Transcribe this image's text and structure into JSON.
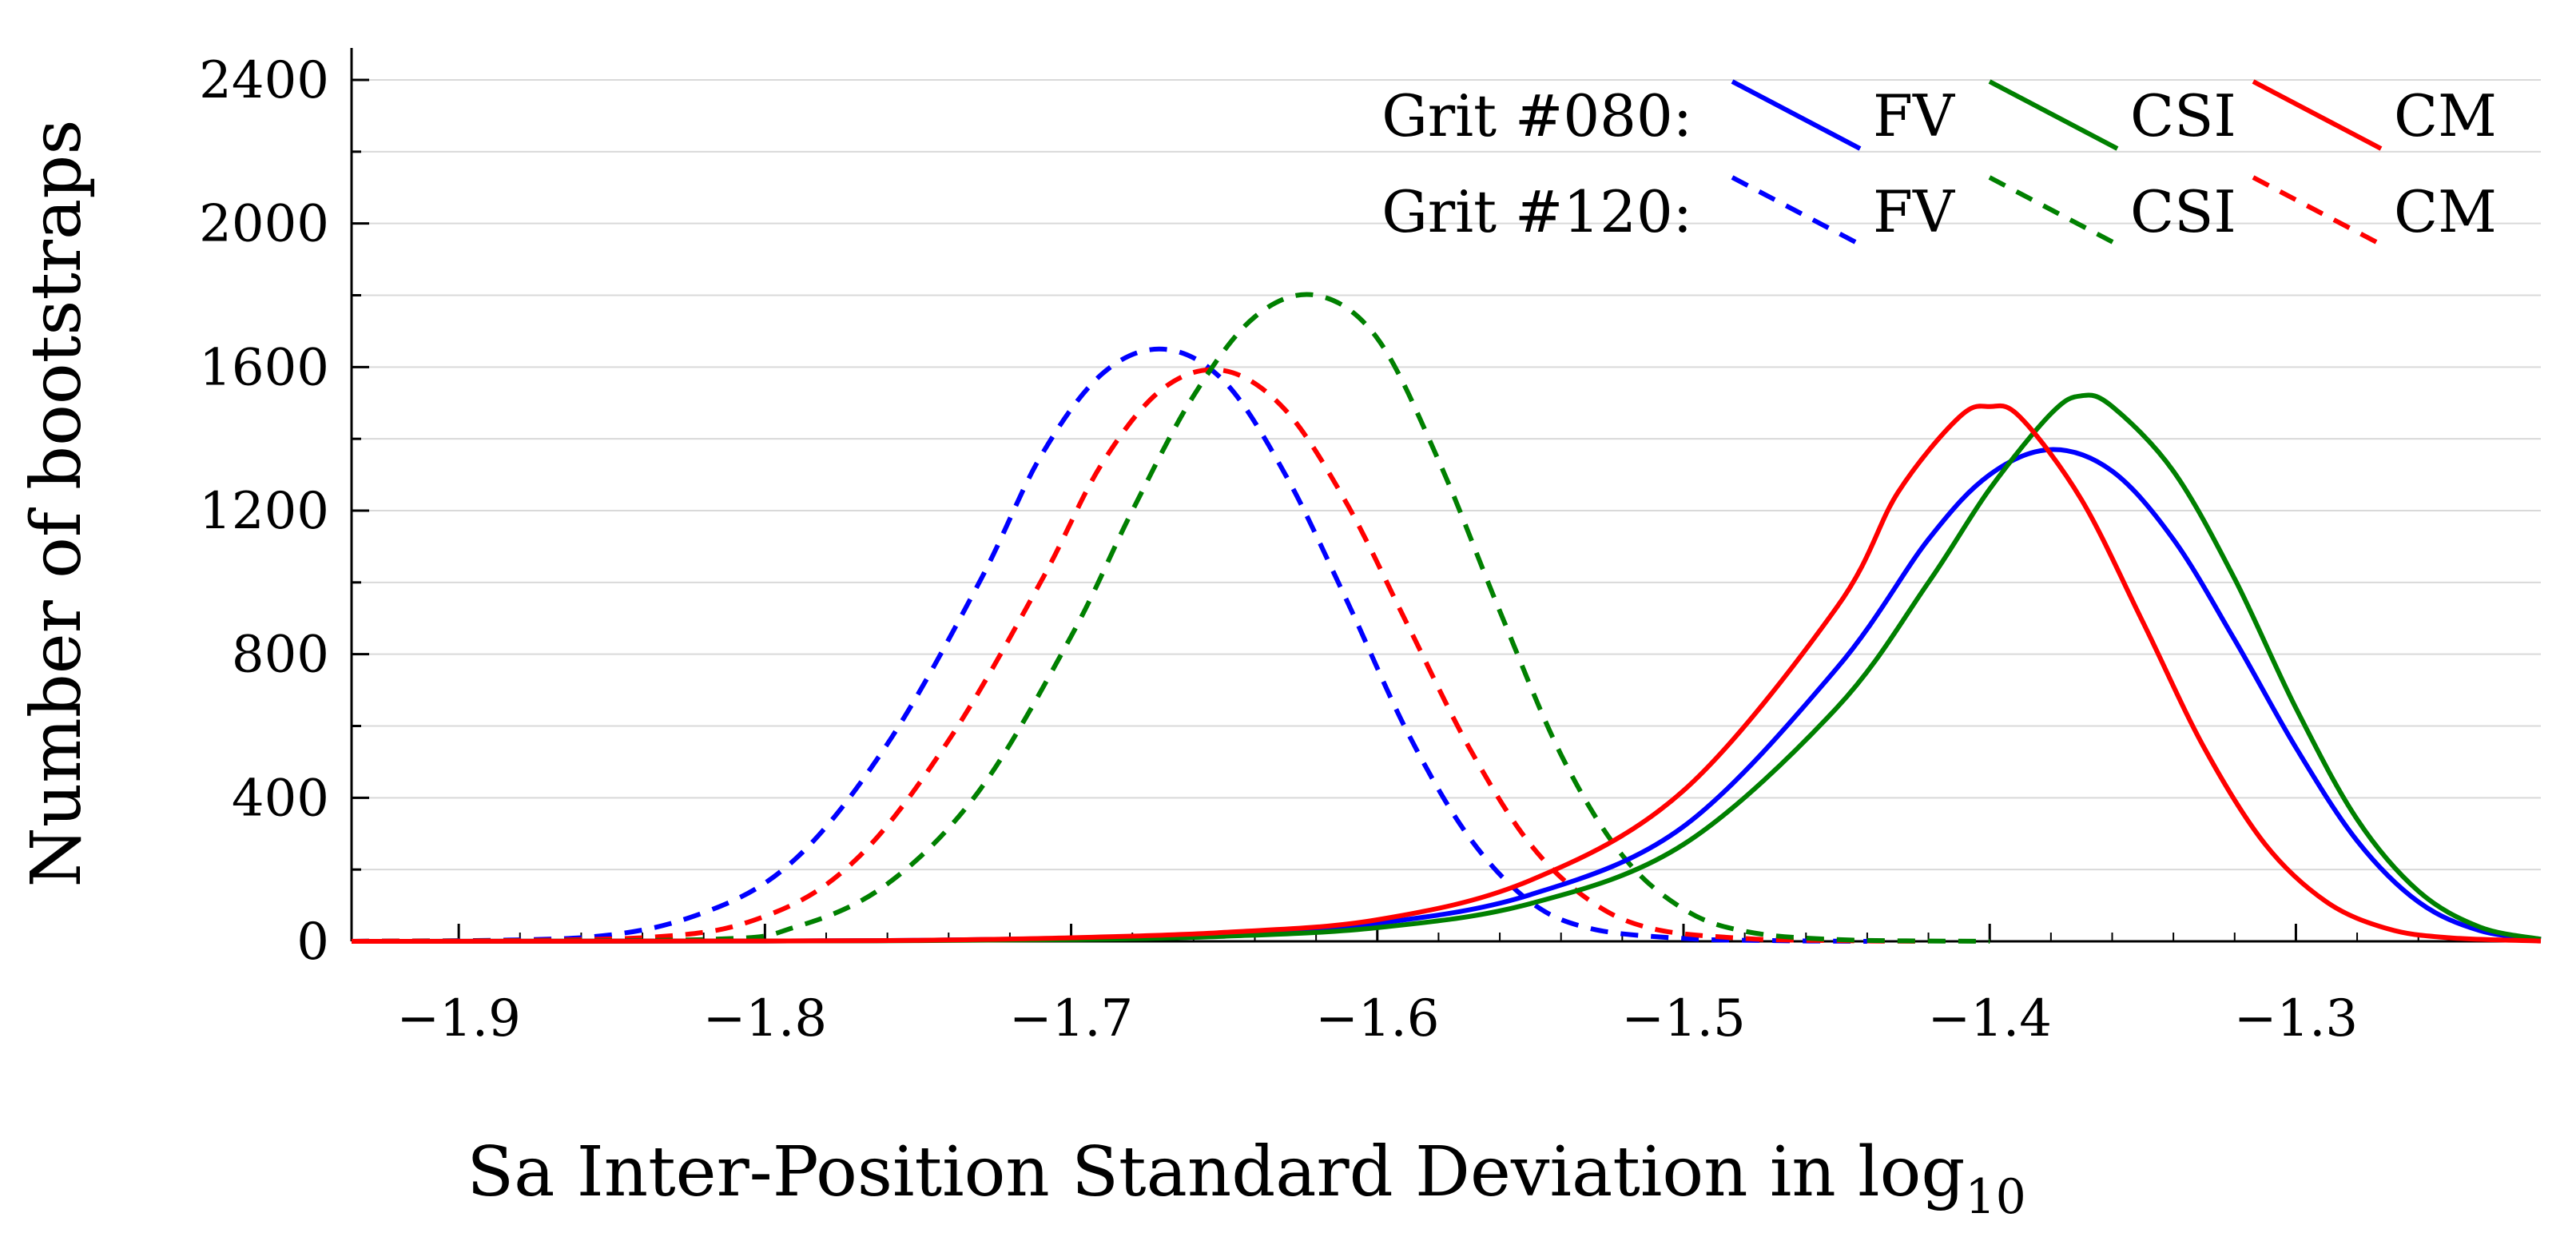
{
  "chart_data": {
    "type": "line",
    "title": "",
    "xlabel": "Sa Inter-Position Standard Deviation in log",
    "xlabel_subscript": "10",
    "ylabel": "Number of bootstraps",
    "xlim": [
      -1.935,
      -1.22
    ],
    "ylim": [
      0,
      2400
    ],
    "x_ticks": [
      -1.9,
      -1.8,
      -1.7,
      -1.6,
      -1.5,
      -1.4,
      -1.3
    ],
    "x_tick_labels": [
      "−1.9",
      "−1.8",
      "−1.7",
      "−1.6",
      "−1.5",
      "−1.4",
      "−1.3"
    ],
    "y_ticks": [
      0,
      400,
      800,
      1200,
      1600,
      2000,
      2400
    ],
    "y_tick_labels": [
      "0",
      "400",
      "800",
      "1200",
      "1600",
      "2000",
      "2400"
    ],
    "y_minor_ticks": [
      200,
      600,
      1000,
      1400,
      1800,
      2200
    ],
    "grid": true,
    "legend": {
      "position": "top-right",
      "rows": [
        {
          "label": "Grit #080:",
          "style": "solid",
          "entries": [
            "FV",
            "CSI",
            "CM"
          ]
        },
        {
          "label": "Grit #120:",
          "style": "dashed",
          "entries": [
            "FV",
            "CSI",
            "CM"
          ]
        }
      ]
    },
    "series": [
      {
        "name": "Grit #080 FV",
        "group": "Grit #080",
        "method": "FV",
        "color": "#0000ff",
        "dash": "solid",
        "x": [
          -1.935,
          -1.8,
          -1.75,
          -1.7,
          -1.65,
          -1.6,
          -1.55,
          -1.5,
          -1.45,
          -1.42,
          -1.4,
          -1.38,
          -1.36,
          -1.34,
          -1.32,
          -1.3,
          -1.28,
          -1.26,
          -1.24,
          -1.22
        ],
        "y": [
          0,
          1,
          3,
          8,
          20,
          50,
          130,
          320,
          760,
          1120,
          1300,
          1370,
          1310,
          1120,
          840,
          540,
          280,
          110,
          30,
          6
        ]
      },
      {
        "name": "Grit #080 CSI",
        "group": "Grit #080",
        "method": "CSI",
        "color": "#008000",
        "dash": "solid",
        "x": [
          -1.935,
          -1.8,
          -1.75,
          -1.7,
          -1.65,
          -1.6,
          -1.55,
          -1.5,
          -1.45,
          -1.42,
          -1.4,
          -1.38,
          -1.37,
          -1.36,
          -1.34,
          -1.32,
          -1.3,
          -1.28,
          -1.26,
          -1.24,
          -1.22
        ],
        "y": [
          0,
          1,
          2,
          5,
          14,
          38,
          105,
          270,
          650,
          1000,
          1260,
          1470,
          1520,
          1490,
          1310,
          1010,
          650,
          340,
          140,
          40,
          6
        ]
      },
      {
        "name": "Grit #080 CM",
        "group": "Grit #080",
        "method": "CM",
        "color": "#ff0000",
        "dash": "solid",
        "x": [
          -1.935,
          -1.8,
          -1.75,
          -1.7,
          -1.65,
          -1.6,
          -1.55,
          -1.5,
          -1.45,
          -1.43,
          -1.41,
          -1.4,
          -1.39,
          -1.37,
          -1.35,
          -1.33,
          -1.31,
          -1.29,
          -1.27,
          -1.25,
          -1.22
        ],
        "y": [
          0,
          1,
          3,
          10,
          25,
          60,
          170,
          420,
          930,
          1250,
          1460,
          1490,
          1460,
          1230,
          890,
          540,
          270,
          110,
          35,
          10,
          1
        ]
      },
      {
        "name": "Grit #120 FV",
        "group": "Grit #120",
        "method": "FV",
        "color": "#0000ff",
        "dash": "dashed",
        "x": [
          -1.935,
          -1.86,
          -1.82,
          -1.79,
          -1.76,
          -1.73,
          -1.71,
          -1.69,
          -1.67,
          -1.65,
          -1.63,
          -1.61,
          -1.59,
          -1.57,
          -1.55,
          -1.53,
          -1.5,
          -1.47,
          -1.44
        ],
        "y": [
          0,
          10,
          80,
          230,
          550,
          1000,
          1350,
          1580,
          1650,
          1560,
          1300,
          950,
          580,
          290,
          110,
          35,
          8,
          2,
          0
        ]
      },
      {
        "name": "Grit #120 CSI",
        "group": "Grit #120",
        "method": "CSI",
        "color": "#008000",
        "dash": "dashed",
        "x": [
          -1.935,
          -1.82,
          -1.79,
          -1.76,
          -1.73,
          -1.7,
          -1.68,
          -1.66,
          -1.64,
          -1.62,
          -1.6,
          -1.58,
          -1.56,
          -1.54,
          -1.52,
          -1.5,
          -1.48,
          -1.45,
          -1.4
        ],
        "y": [
          0,
          5,
          40,
          160,
          420,
          850,
          1200,
          1520,
          1740,
          1800,
          1680,
          1340,
          920,
          520,
          240,
          90,
          28,
          5,
          0
        ]
      },
      {
        "name": "Grit #120 CM",
        "group": "Grit #120",
        "method": "CM",
        "color": "#ff0000",
        "dash": "dashed",
        "x": [
          -1.935,
          -1.84,
          -1.8,
          -1.77,
          -1.74,
          -1.71,
          -1.69,
          -1.67,
          -1.65,
          -1.63,
          -1.61,
          -1.59,
          -1.57,
          -1.55,
          -1.53,
          -1.51,
          -1.48,
          -1.45,
          -1.42
        ],
        "y": [
          0,
          10,
          70,
          230,
          560,
          1000,
          1330,
          1540,
          1590,
          1480,
          1220,
          880,
          540,
          270,
          110,
          35,
          8,
          2,
          0
        ]
      }
    ]
  }
}
